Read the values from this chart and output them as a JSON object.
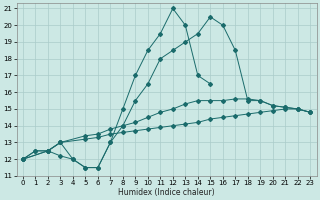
{
  "xlabel": "Humidex (Indice chaleur)",
  "xlim": [
    -0.5,
    23.5
  ],
  "ylim": [
    11,
    21.3
  ],
  "xticks": [
    0,
    1,
    2,
    3,
    4,
    5,
    6,
    7,
    8,
    9,
    10,
    11,
    12,
    13,
    14,
    15,
    16,
    17,
    18,
    19,
    20,
    21,
    22,
    23
  ],
  "yticks": [
    11,
    12,
    13,
    14,
    15,
    16,
    17,
    18,
    19,
    20,
    21
  ],
  "bg_color": "#cce8e4",
  "grid_color": "#aaccca",
  "line_color": "#1a6b6b",
  "lines": [
    {
      "x": [
        0,
        1,
        2,
        3,
        5,
        6,
        7,
        8,
        9,
        10,
        11,
        12,
        13,
        14,
        15,
        16,
        17,
        18,
        19,
        20,
        21,
        22,
        23
      ],
      "y": [
        12.0,
        12.5,
        12.5,
        13.0,
        13.2,
        13.3,
        13.5,
        13.6,
        13.7,
        13.8,
        13.9,
        14.0,
        14.1,
        14.2,
        14.4,
        14.5,
        14.6,
        14.7,
        14.8,
        14.9,
        15.0,
        15.0,
        14.8
      ]
    },
    {
      "x": [
        0,
        1,
        2,
        3,
        5,
        6,
        7,
        8,
        9,
        10,
        11,
        12,
        13,
        14,
        15,
        16,
        17,
        18,
        19,
        20,
        21,
        22,
        23
      ],
      "y": [
        12.0,
        12.5,
        12.5,
        13.0,
        13.4,
        13.5,
        13.8,
        14.0,
        14.2,
        14.5,
        14.8,
        15.0,
        15.3,
        15.5,
        15.5,
        15.5,
        15.6,
        15.6,
        15.5,
        15.2,
        15.1,
        15.0,
        14.8
      ]
    },
    {
      "x": [
        0,
        2,
        3,
        4,
        5,
        6,
        7,
        8,
        9,
        10,
        11,
        12,
        13,
        14,
        15,
        16,
        17,
        18,
        19,
        20,
        21,
        22,
        23
      ],
      "y": [
        12.0,
        12.5,
        13.0,
        12.0,
        11.5,
        11.5,
        13.0,
        14.0,
        15.5,
        16.5,
        18.0,
        18.5,
        19.0,
        19.5,
        20.5,
        20.0,
        18.5,
        15.5,
        15.5,
        15.2,
        15.1,
        15.0,
        14.8
      ]
    },
    {
      "x": [
        0,
        2,
        3,
        4,
        5,
        6,
        7,
        8,
        9,
        10,
        11,
        12,
        13,
        14,
        15
      ],
      "y": [
        12.0,
        12.5,
        12.2,
        12.0,
        11.5,
        11.5,
        13.0,
        15.0,
        17.0,
        18.5,
        19.5,
        21.0,
        20.0,
        17.0,
        16.5
      ]
    }
  ]
}
